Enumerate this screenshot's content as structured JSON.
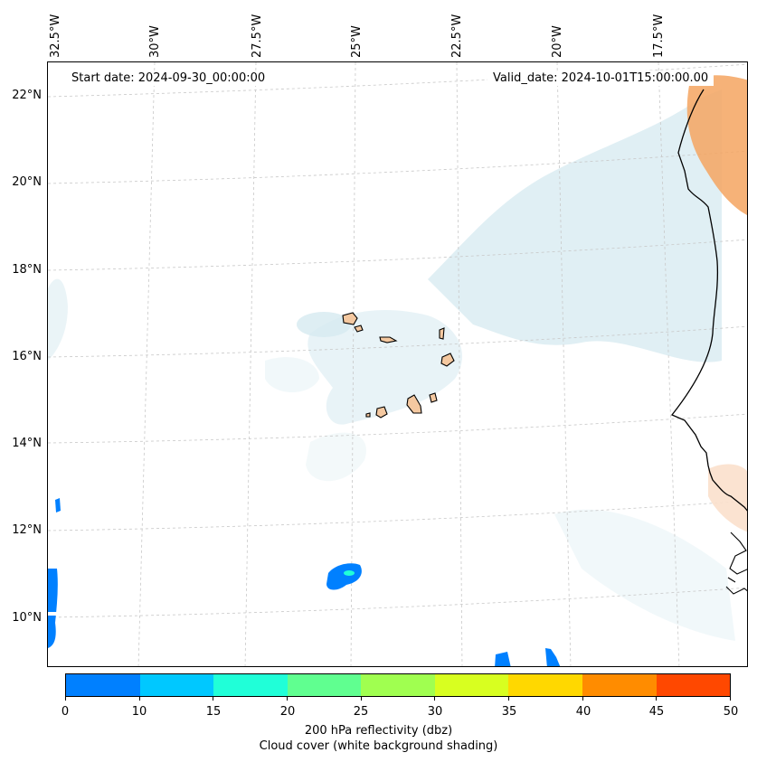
{
  "map": {
    "start_date": "Start date: 2024-09-30_00:00:00",
    "valid_date": "Valid_date: 2024-10-01T15:00:00.00",
    "lat_labels": [
      "22°N",
      "20°N",
      "18°N",
      "16°N",
      "14°N",
      "12°N",
      "10°N"
    ],
    "lon_labels": [
      "32.5°W",
      "30°W",
      "27.5°W",
      "25°W",
      "22.5°W",
      "20°W",
      "17.5°W"
    ],
    "land_color": "#f4c8a0",
    "cloud_color": "#d6eaf0",
    "grid": true
  },
  "colorbar": {
    "ticks": [
      "0",
      "10",
      "15",
      "20",
      "25",
      "30",
      "35",
      "40",
      "45",
      "50"
    ],
    "colors": [
      "#0080ff",
      "#00c8ff",
      "#20ffd8",
      "#60ff90",
      "#a0ff50",
      "#d8ff20",
      "#ffd800",
      "#ff8c00",
      "#ff4800"
    ],
    "label_1": "200 hPa reflectivity (dbz)",
    "label_2": "Cloud cover (white background shading)"
  }
}
